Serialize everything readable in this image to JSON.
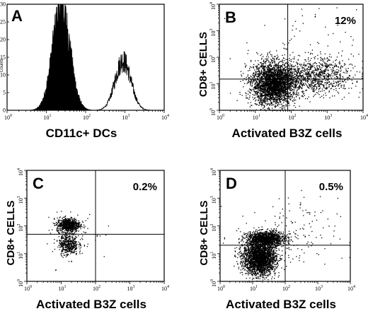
{
  "chart_data": [
    {
      "type": "histogram",
      "panel": "A",
      "xlabel": "CD11c+ DCs",
      "ylabel": "Counts",
      "xscale": "log",
      "xlim": [
        1,
        10000
      ],
      "ylim": [
        0,
        30
      ],
      "yticks": [
        0,
        5,
        10,
        15,
        20,
        25,
        30
      ],
      "xticks": [
        "10^0",
        "10^1",
        "10^2",
        "10^3",
        "10^4"
      ],
      "peaks": [
        {
          "name": "peak-1",
          "center_log10": 1.38,
          "width_log10": 0.22,
          "height": 29,
          "filled": true
        },
        {
          "name": "peak-2",
          "center_log10": 2.95,
          "width_log10": 0.2,
          "height": 14,
          "filled": false
        }
      ]
    },
    {
      "type": "scatter",
      "panel": "B",
      "xlabel": "Activated B3Z cells",
      "ylabel": "CD8+ CELLS",
      "xscale": "log",
      "yscale": "log",
      "xlim": [
        1,
        10000
      ],
      "ylim": [
        1,
        10000
      ],
      "quadrant_gate": {
        "x": 80,
        "y": 15
      },
      "percent_label": "12%",
      "clusters": [
        {
          "name": "main",
          "cx_log10": 1.5,
          "cy_log10": 1.0,
          "sx": 0.3,
          "sy": 0.4,
          "n": 3000
        },
        {
          "name": "tail",
          "cx_log10": 2.6,
          "cy_log10": 1.3,
          "sx": 0.55,
          "sy": 0.35,
          "n": 1000
        },
        {
          "name": "sparse",
          "cx_log10": 2.2,
          "cy_log10": 2.2,
          "sx": 0.8,
          "sy": 0.8,
          "n": 80
        }
      ]
    },
    {
      "type": "scatter",
      "panel": "C",
      "xlabel": "Activated B3Z cells",
      "ylabel": "CD8+ CELLS",
      "xscale": "log",
      "yscale": "log",
      "xlim": [
        1,
        10000
      ],
      "ylim": [
        1,
        10000
      ],
      "quadrant_gate": {
        "x": 100,
        "y": 50
      },
      "percent_label": "0.2%",
      "clusters": [
        {
          "name": "upper",
          "cx_log10": 1.2,
          "cy_log10": 2.05,
          "sx": 0.17,
          "sy": 0.13,
          "n": 700
        },
        {
          "name": "lower",
          "cx_log10": 1.2,
          "cy_log10": 1.35,
          "sx": 0.14,
          "sy": 0.2,
          "n": 450
        },
        {
          "name": "sparse",
          "cx_log10": 1.5,
          "cy_log10": 1.6,
          "sx": 0.5,
          "sy": 0.5,
          "n": 40
        }
      ]
    },
    {
      "type": "scatter",
      "panel": "D",
      "xlabel": "Activated B3Z cells",
      "ylabel": "CD8+ CELLS",
      "xscale": "log",
      "yscale": "log",
      "xlim": [
        1,
        10000
      ],
      "ylim": [
        1,
        10000
      ],
      "quadrant_gate": {
        "x": 100,
        "y": 20
      },
      "percent_label": "0.5%",
      "clusters": [
        {
          "name": "upper",
          "cx_log10": 1.4,
          "cy_log10": 1.55,
          "sx": 0.3,
          "sy": 0.13,
          "n": 1300
        },
        {
          "name": "lower",
          "cx_log10": 1.2,
          "cy_log10": 0.85,
          "sx": 0.25,
          "sy": 0.3,
          "n": 2600
        },
        {
          "name": "sparse",
          "cx_log10": 2.0,
          "cy_log10": 1.6,
          "sx": 0.8,
          "sy": 0.7,
          "n": 160
        }
      ]
    }
  ]
}
